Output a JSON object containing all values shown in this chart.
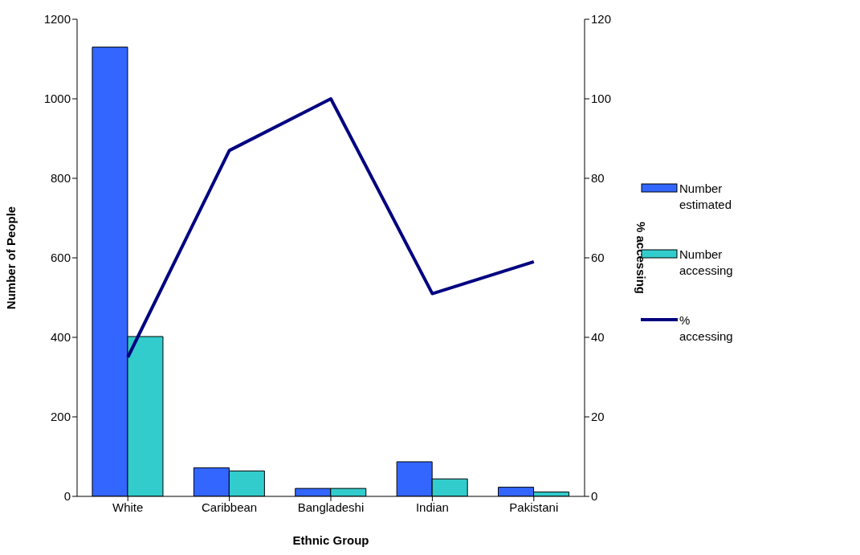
{
  "chart_data": {
    "type": "bar",
    "xlabel": "Ethnic Group",
    "ylabel": "Number of People",
    "y2label": "% accessing",
    "categories": [
      "White",
      "Caribbean",
      "Bangladeshi",
      "Indian",
      "Pakistani"
    ],
    "series": [
      {
        "name": "Number estimated",
        "color": "#3366ff",
        "values": [
          1130,
          72,
          20,
          87,
          23
        ]
      },
      {
        "name": "Number accessing",
        "color": "#33cccc",
        "values": [
          402,
          64,
          20,
          44,
          11
        ]
      },
      {
        "name": "% accessing",
        "color": "#000080",
        "type": "line",
        "axis": "y2",
        "values": [
          35,
          87,
          100,
          51,
          59
        ]
      }
    ],
    "ylim": [
      0,
      1200
    ],
    "yticks": [
      0,
      200,
      400,
      600,
      800,
      1000,
      1200
    ],
    "y2lim": [
      0,
      120
    ],
    "y2ticks": [
      0,
      20,
      40,
      60,
      80,
      100,
      120
    ],
    "grid": false,
    "legend": "right",
    "marker": "none"
  }
}
